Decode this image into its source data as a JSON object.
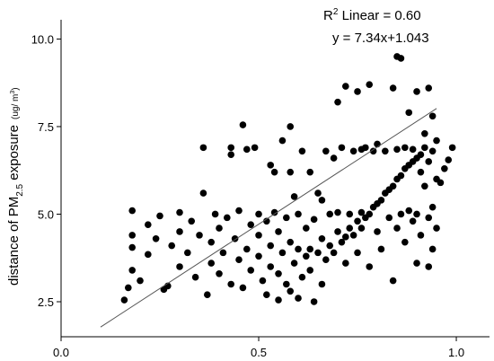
{
  "chart_data": {
    "type": "scatter",
    "annotations": {
      "r_symbol": "R",
      "r_power": "2",
      "r_text": " Linear = 0.60",
      "equation": "y = 7.34x+1.043"
    },
    "y_label": {
      "main": "distance of PM",
      "sub": "2.5",
      "rest": " exposure",
      "unit_open": "(ug/ m",
      "unit_power": "3",
      "unit_close": ")"
    },
    "x": [
      0.16,
      0.17,
      0.18,
      0.18,
      0.18,
      0.18,
      0.2,
      0.22,
      0.22,
      0.24,
      0.25,
      0.26,
      0.27,
      0.28,
      0.3,
      0.3,
      0.3,
      0.32,
      0.33,
      0.34,
      0.35,
      0.36,
      0.36,
      0.37,
      0.38,
      0.38,
      0.39,
      0.4,
      0.4,
      0.41,
      0.42,
      0.43,
      0.43,
      0.44,
      0.45,
      0.45,
      0.46,
      0.46,
      0.47,
      0.48,
      0.48,
      0.49,
      0.5,
      0.5,
      0.5,
      0.51,
      0.52,
      0.52,
      0.53,
      0.53,
      0.54,
      0.54,
      0.55,
      0.55,
      0.55,
      0.56,
      0.56,
      0.57,
      0.57,
      0.58,
      0.58,
      0.58,
      0.59,
      0.59,
      0.6,
      0.6,
      0.6,
      0.61,
      0.61,
      0.62,
      0.62,
      0.63,
      0.63,
      0.64,
      0.64,
      0.65,
      0.65,
      0.66,
      0.66,
      0.67,
      0.67,
      0.68,
      0.68,
      0.69,
      0.69,
      0.7,
      0.7,
      0.7,
      0.71,
      0.71,
      0.72,
      0.72,
      0.72,
      0.73,
      0.73,
      0.74,
      0.74,
      0.75,
      0.75,
      0.75,
      0.76,
      0.76,
      0.77,
      0.77,
      0.78,
      0.78,
      0.78,
      0.79,
      0.79,
      0.8,
      0.8,
      0.8,
      0.81,
      0.81,
      0.82,
      0.82,
      0.83,
      0.83,
      0.84,
      0.84,
      0.84,
      0.85,
      0.85,
      0.85,
      0.85,
      0.86,
      0.86,
      0.86,
      0.87,
      0.87,
      0.87,
      0.88,
      0.88,
      0.88,
      0.89,
      0.89,
      0.89,
      0.9,
      0.9,
      0.9,
      0.9,
      0.91,
      0.91,
      0.91,
      0.92,
      0.92,
      0.92,
      0.93,
      0.93,
      0.93,
      0.93,
      0.94,
      0.94,
      0.94,
      0.94,
      0.95,
      0.95,
      0.95,
      0.96,
      0.97,
      0.99,
      0.98,
      0.76,
      0.66,
      0.63,
      0.47,
      0.58,
      0.53,
      0.43
    ],
    "values": [
      2.55,
      2.9,
      3.4,
      4.05,
      4.4,
      5.1,
      3.1,
      4.7,
      3.85,
      4.3,
      4.95,
      2.85,
      2.95,
      4.1,
      3.5,
      4.5,
      5.05,
      3.9,
      4.8,
      3.2,
      4.4,
      6.9,
      5.6,
      2.7,
      3.6,
      4.2,
      5.0,
      4.6,
      3.3,
      3.9,
      4.9,
      6.9,
      3.0,
      4.3,
      3.7,
      5.1,
      7.55,
      2.9,
      4.0,
      4.7,
      3.4,
      6.9,
      5.0,
      3.8,
      4.4,
      3.1,
      2.7,
      4.8,
      3.5,
      4.1,
      5.05,
      6.2,
      2.55,
      3.3,
      4.5,
      3.9,
      7.1,
      4.9,
      3.0,
      7.5,
      2.8,
      4.2,
      3.6,
      5.5,
      5.0,
      4.0,
      2.6,
      6.8,
      3.2,
      4.6,
      3.8,
      6.2,
      3.4,
      4.85,
      2.5,
      5.6,
      3.9,
      3.0,
      4.3,
      6.8,
      3.7,
      5.0,
      4.1,
      6.6,
      3.9,
      8.2,
      4.5,
      5.05,
      4.2,
      6.9,
      8.65,
      4.35,
      3.6,
      4.6,
      5.0,
      6.8,
      4.4,
      8.5,
      4.8,
      3.9,
      4.6,
      5.05,
      6.9,
      4.9,
      8.7,
      5.0,
      3.5,
      5.2,
      6.8,
      5.3,
      4.5,
      7.0,
      5.4,
      4.0,
      5.6,
      6.8,
      5.7,
      4.9,
      5.8,
      8.6,
      3.1,
      6.0,
      9.5,
      6.85,
      4.6,
      9.45,
      6.1,
      5.0,
      6.3,
      6.9,
      4.2,
      6.4,
      5.1,
      7.9,
      6.5,
      6.85,
      4.8,
      6.6,
      8.5,
      5.0,
      3.6,
      6.7,
      6.2,
      4.4,
      6.9,
      5.8,
      7.3,
      8.6,
      6.5,
      4.9,
      3.5,
      7.8,
      6.8,
      5.2,
      4.0,
      7.1,
      6.0,
      4.6,
      5.9,
      6.3,
      6.9,
      6.55,
      6.85,
      5.4,
      4.0,
      6.85,
      6.2,
      6.4,
      6.7
    ],
    "color": "#000000",
    "fit": {
      "slope": 7.34,
      "intercept": 1.043,
      "x": [
        0.1,
        0.95
      ],
      "color": "#555555"
    },
    "xlim": [
      0,
      1.084
    ],
    "ylim": [
      1.5,
      10.55
    ],
    "xticks": [
      {
        "value": 0,
        "label": "0.0"
      },
      {
        "value": 0.5,
        "label": "0.5"
      },
      {
        "value": 1,
        "label": "1.0"
      }
    ],
    "yticks": [
      2.5,
      {
        "value": 5,
        "label": "5.0"
      },
      7.5,
      {
        "value": 10,
        "label": "10.0"
      }
    ],
    "grid": false
  }
}
